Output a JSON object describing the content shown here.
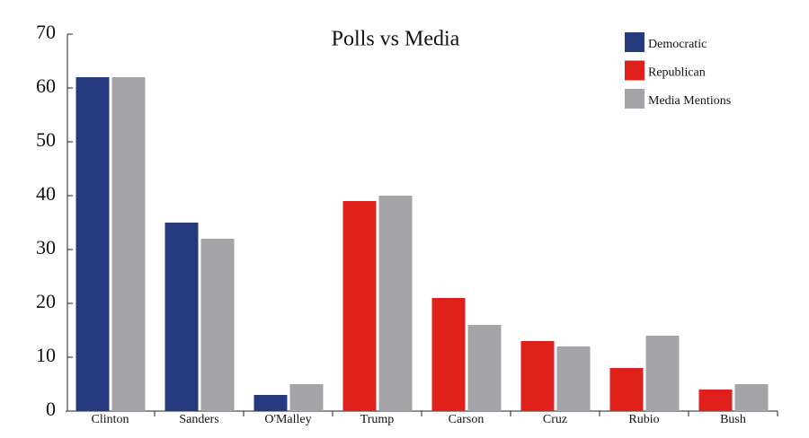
{
  "chart_data": {
    "type": "bar",
    "title": "Polls vs Media",
    "categories": [
      "Clinton",
      "Sanders",
      "O'Malley",
      "Trump",
      "Carson",
      "Cruz",
      "Rubio",
      "Bush"
    ],
    "series": [
      {
        "name": "Democratic",
        "color": "#253a7e",
        "values": [
          62,
          35,
          3,
          null,
          null,
          null,
          null,
          null
        ]
      },
      {
        "name": "Republican",
        "color": "#e0201a",
        "values": [
          null,
          null,
          null,
          39,
          21,
          13,
          8,
          4
        ]
      },
      {
        "name": "Media Mentions",
        "color": "#a3a3a8",
        "values": [
          62,
          32,
          5,
          40,
          16,
          12,
          14,
          5
        ]
      }
    ],
    "ylim": [
      0,
      70
    ],
    "yticks": [
      0,
      10,
      20,
      30,
      40,
      50,
      60,
      70
    ],
    "grid": false,
    "legend": "upper right"
  }
}
